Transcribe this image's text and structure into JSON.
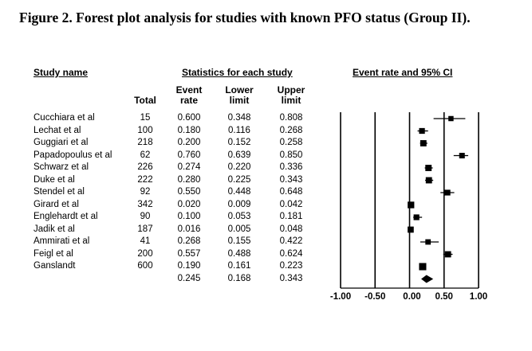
{
  "caption": "Figure 2. Forest plot analysis for studies with known PFO status (Group II).",
  "headers": {
    "study_name": "Study name",
    "statistics": "Statistics for each study",
    "event_rate_ci": "Event rate and 95% CI",
    "total": "Total",
    "event_rate_1": "Event",
    "event_rate_2": "rate",
    "lower_1": "Lower",
    "lower_2": "limit",
    "upper_1": "Upper",
    "upper_2": "limit"
  },
  "chart_data": {
    "type": "forest",
    "xlim": [
      -1.0,
      1.0
    ],
    "x_ticks": [
      "-1.00",
      "-0.50",
      "0.00",
      "0.50",
      "1.00"
    ],
    "x_tick_values": [
      -1.0,
      -0.5,
      0.0,
      0.5,
      1.0
    ],
    "studies": [
      {
        "name": "Cucchiara et al",
        "total": "15",
        "rate": "0.600",
        "lower": "0.348",
        "upper": "0.808"
      },
      {
        "name": "Lechat et al",
        "total": "100",
        "rate": "0.180",
        "lower": "0.116",
        "upper": "0.268"
      },
      {
        "name": "Guggiari et al",
        "total": "218",
        "rate": "0.200",
        "lower": "0.152",
        "upper": "0.258"
      },
      {
        "name": "Papadopoulus et al",
        "total": "62",
        "rate": "0.760",
        "lower": "0.639",
        "upper": "0.850"
      },
      {
        "name": "Schwarz et al",
        "total": "226",
        "rate": "0.274",
        "lower": "0.220",
        "upper": "0.336"
      },
      {
        "name": "Duke et al",
        "total": "222",
        "rate": "0.280",
        "lower": "0.225",
        "upper": "0.343"
      },
      {
        "name": "Stendel et al",
        "total": "92",
        "rate": "0.550",
        "lower": "0.448",
        "upper": "0.648"
      },
      {
        "name": "Girard et al",
        "total": "342",
        "rate": "0.020",
        "lower": "0.009",
        "upper": "0.042"
      },
      {
        "name": "Englehardt et al",
        "total": "90",
        "rate": "0.100",
        "lower": "0.053",
        "upper": "0.181"
      },
      {
        "name": "Jadik et al",
        "total": "187",
        "rate": "0.016",
        "lower": "0.005",
        "upper": "0.048"
      },
      {
        "name": "Ammirati et al",
        "total": "41",
        "rate": "0.268",
        "lower": "0.155",
        "upper": "0.422"
      },
      {
        "name": "Feigl et al",
        "total": "200",
        "rate": "0.557",
        "lower": "0.488",
        "upper": "0.624"
      },
      {
        "name": "Ganslandt",
        "total": "600",
        "rate": "0.190",
        "lower": "0.161",
        "upper": "0.223"
      }
    ],
    "summary": {
      "rate": "0.245",
      "lower": "0.168",
      "upper": "0.343"
    }
  }
}
